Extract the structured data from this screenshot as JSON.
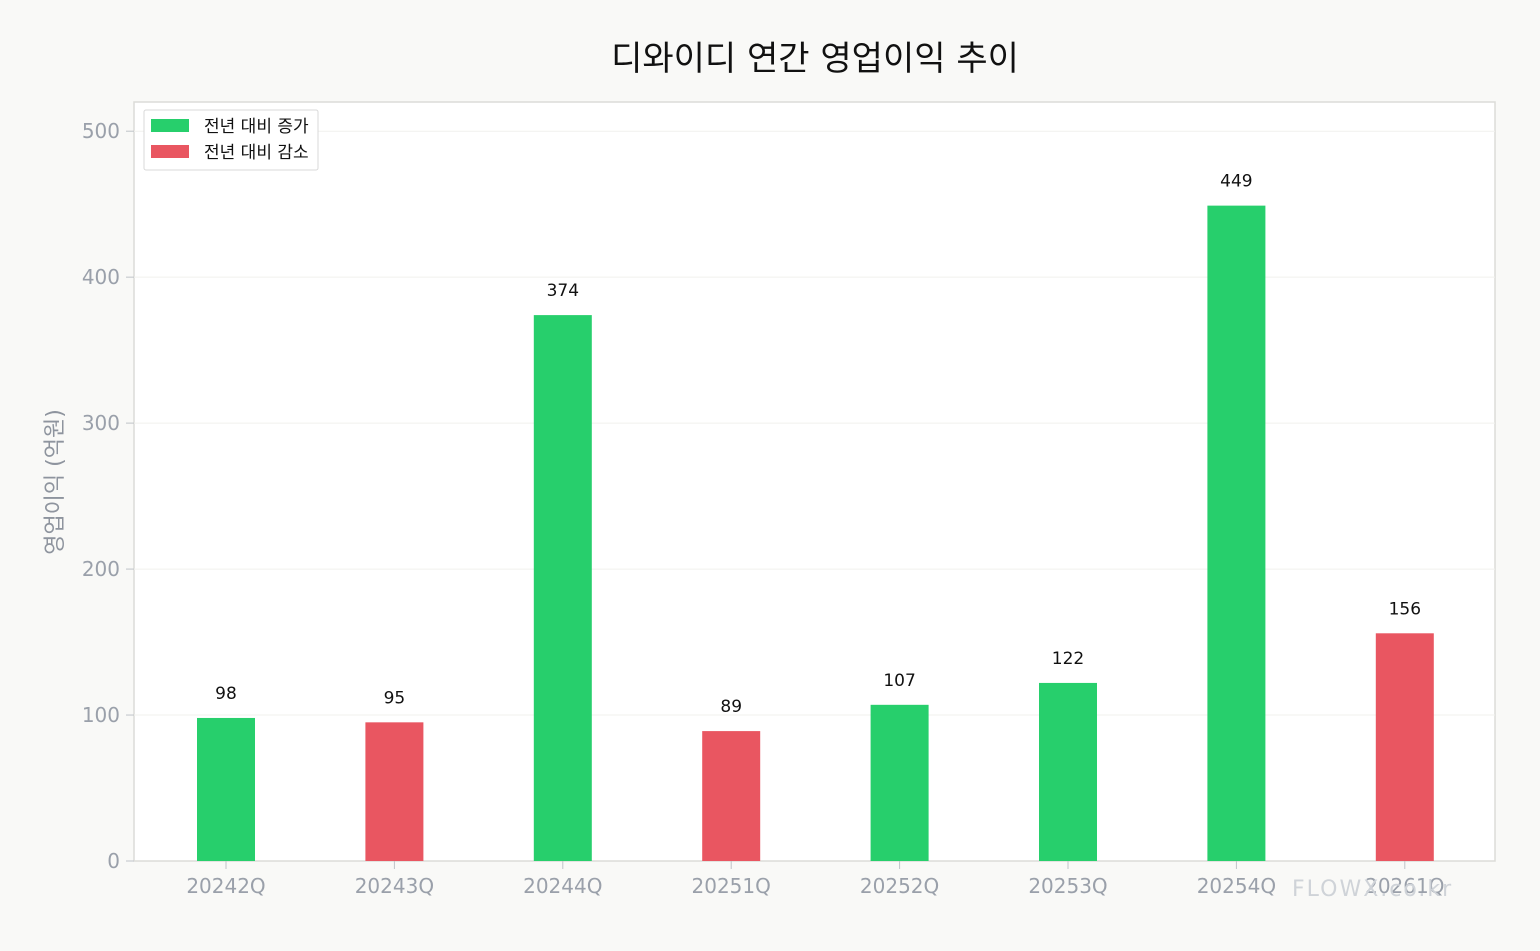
{
  "chart_data": {
    "type": "bar",
    "title": "디와이디 연간 영업이익 추이",
    "xlabel": "",
    "ylabel": "영업이익 (억원)",
    "categories": [
      "20242Q",
      "20243Q",
      "20244Q",
      "20251Q",
      "20252Q",
      "20253Q",
      "20254Q",
      "20261Q"
    ],
    "values": [
      98,
      95,
      374,
      89,
      107,
      122,
      449,
      156
    ],
    "change": [
      "increase",
      "decrease",
      "increase",
      "decrease",
      "increase",
      "increase",
      "increase",
      "decrease"
    ],
    "ylim": [
      0,
      520
    ],
    "yticks": [
      0,
      100,
      200,
      300,
      400,
      500
    ],
    "grid": true,
    "legend": {
      "placement": "top-left",
      "entries": [
        {
          "key": "increase",
          "label": "전년 대비 증가",
          "color": "#27cf6c"
        },
        {
          "key": "decrease",
          "label": "전년 대비 감소",
          "color": "#e95661"
        }
      ]
    },
    "colors": {
      "increase": "#27cf6c",
      "decrease": "#e95661",
      "background": "#f9f9f7",
      "plot_background": "#ffffff"
    }
  },
  "watermark": "FLOWX.co.kr"
}
